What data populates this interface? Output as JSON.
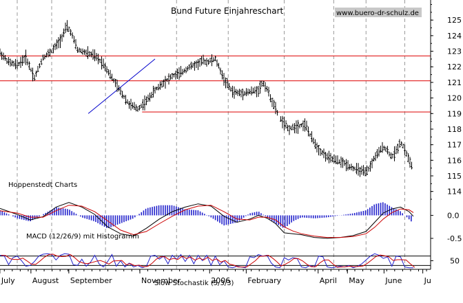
{
  "chart_data": [
    {
      "panel": "price",
      "type": "ohlc",
      "title": "Bund Future Einjahreschart",
      "watermark": "www.buero-dr-schulz.de",
      "source_label": "Hoppenstedt Charts",
      "ylim": [
        113.5,
        126.2
      ],
      "ytick_values": [
        114,
        115,
        116,
        117,
        118,
        119,
        120,
        121,
        122,
        123,
        124,
        125
      ],
      "ytick_labels": [
        "114",
        "115",
        "116",
        "117",
        "118",
        "119",
        "120",
        "121",
        "122",
        "123",
        "124",
        "125"
      ],
      "x_months": [
        "July",
        "August",
        "September",
        "November",
        "2006",
        "February",
        "April",
        "May",
        "June",
        "Ju"
      ],
      "horizontal_lines": [
        122.7,
        121.1,
        119.1
      ],
      "trendline": {
        "from": [
          0.205,
          119.0
        ],
        "to": [
          0.36,
          122.5
        ]
      },
      "price_path": [
        [
          0.0,
          122.9
        ],
        [
          0.02,
          122.3
        ],
        [
          0.04,
          122.1
        ],
        [
          0.06,
          122.6
        ],
        [
          0.08,
          121.3
        ],
        [
          0.1,
          122.6
        ],
        [
          0.12,
          123.0
        ],
        [
          0.14,
          123.7
        ],
        [
          0.155,
          124.6
        ],
        [
          0.165,
          124.2
        ],
        [
          0.18,
          123.1
        ],
        [
          0.2,
          122.9
        ],
        [
          0.22,
          122.7
        ],
        [
          0.24,
          122.2
        ],
        [
          0.26,
          121.3
        ],
        [
          0.28,
          120.4
        ],
        [
          0.3,
          119.6
        ],
        [
          0.32,
          119.3
        ],
        [
          0.34,
          119.8
        ],
        [
          0.36,
          120.5
        ],
        [
          0.38,
          121.0
        ],
        [
          0.4,
          121.4
        ],
        [
          0.42,
          121.6
        ],
        [
          0.44,
          122.0
        ],
        [
          0.46,
          122.2
        ],
        [
          0.47,
          122.4
        ],
        [
          0.48,
          122.3
        ],
        [
          0.5,
          122.5
        ],
        [
          0.51,
          121.9
        ],
        [
          0.52,
          121.2
        ],
        [
          0.54,
          120.4
        ],
        [
          0.56,
          120.3
        ],
        [
          0.58,
          120.4
        ],
        [
          0.6,
          120.5
        ],
        [
          0.61,
          121.0
        ],
        [
          0.62,
          120.6
        ],
        [
          0.63,
          119.9
        ],
        [
          0.64,
          119.3
        ],
        [
          0.65,
          118.7
        ],
        [
          0.67,
          118.0
        ],
        [
          0.69,
          118.2
        ],
        [
          0.71,
          118.3
        ],
        [
          0.72,
          117.6
        ],
        [
          0.74,
          116.7
        ],
        [
          0.76,
          116.2
        ],
        [
          0.78,
          116.0
        ],
        [
          0.8,
          115.8
        ],
        [
          0.82,
          115.5
        ],
        [
          0.84,
          115.3
        ],
        [
          0.85,
          115.2
        ],
        [
          0.86,
          115.6
        ],
        [
          0.87,
          116.2
        ],
        [
          0.88,
          116.5
        ],
        [
          0.89,
          116.9
        ],
        [
          0.9,
          116.6
        ],
        [
          0.91,
          116.2
        ],
        [
          0.92,
          116.6
        ],
        [
          0.93,
          117.2
        ],
        [
          0.94,
          116.7
        ],
        [
          0.95,
          116.0
        ],
        [
          0.96,
          115.4
        ]
      ]
    },
    {
      "panel": "macd",
      "type": "line+bar",
      "label": "MACD (12/26/9) mit Histogramm",
      "ylim": [
        -0.8,
        0.35
      ],
      "ytick_values": [
        0.0,
        -0.5
      ],
      "ytick_labels": [
        "0.0",
        "-0.5"
      ],
      "series": [
        {
          "name": "MACD",
          "color": "#000000"
        },
        {
          "name": "Signal",
          "color": "#cc0000"
        },
        {
          "name": "Histogramm",
          "color": "#2222cc"
        }
      ],
      "macd_path": [
        [
          0.0,
          0.15
        ],
        [
          0.04,
          0.02
        ],
        [
          0.07,
          -0.1
        ],
        [
          0.1,
          -0.03
        ],
        [
          0.13,
          0.18
        ],
        [
          0.16,
          0.28
        ],
        [
          0.19,
          0.18
        ],
        [
          0.22,
          0.02
        ],
        [
          0.25,
          -0.25
        ],
        [
          0.28,
          -0.4
        ],
        [
          0.31,
          -0.45
        ],
        [
          0.34,
          -0.28
        ],
        [
          0.37,
          -0.08
        ],
        [
          0.4,
          0.08
        ],
        [
          0.43,
          0.18
        ],
        [
          0.46,
          0.25
        ],
        [
          0.49,
          0.2
        ],
        [
          0.52,
          -0.02
        ],
        [
          0.55,
          -0.15
        ],
        [
          0.58,
          -0.08
        ],
        [
          0.6,
          0.0
        ],
        [
          0.62,
          -0.06
        ],
        [
          0.64,
          -0.18
        ],
        [
          0.66,
          -0.38
        ],
        [
          0.68,
          -0.4
        ],
        [
          0.7,
          -0.42
        ],
        [
          0.73,
          -0.48
        ],
        [
          0.76,
          -0.5
        ],
        [
          0.79,
          -0.48
        ],
        [
          0.82,
          -0.44
        ],
        [
          0.85,
          -0.35
        ],
        [
          0.87,
          -0.15
        ],
        [
          0.89,
          0.05
        ],
        [
          0.91,
          0.14
        ],
        [
          0.93,
          0.18
        ],
        [
          0.95,
          0.08
        ],
        [
          0.96,
          -0.02
        ]
      ],
      "signal_path": [
        [
          0.0,
          0.1
        ],
        [
          0.04,
          0.05
        ],
        [
          0.07,
          -0.04
        ],
        [
          0.1,
          -0.04
        ],
        [
          0.13,
          0.1
        ],
        [
          0.16,
          0.22
        ],
        [
          0.19,
          0.2
        ],
        [
          0.22,
          0.08
        ],
        [
          0.25,
          -0.12
        ],
        [
          0.28,
          -0.32
        ],
        [
          0.31,
          -0.42
        ],
        [
          0.34,
          -0.35
        ],
        [
          0.37,
          -0.18
        ],
        [
          0.4,
          -0.02
        ],
        [
          0.43,
          0.12
        ],
        [
          0.46,
          0.2
        ],
        [
          0.49,
          0.22
        ],
        [
          0.52,
          0.08
        ],
        [
          0.55,
          -0.08
        ],
        [
          0.58,
          -0.1
        ],
        [
          0.6,
          -0.04
        ],
        [
          0.62,
          -0.04
        ],
        [
          0.64,
          -0.1
        ],
        [
          0.66,
          -0.25
        ],
        [
          0.68,
          -0.34
        ],
        [
          0.7,
          -0.4
        ],
        [
          0.73,
          -0.45
        ],
        [
          0.76,
          -0.48
        ],
        [
          0.79,
          -0.48
        ],
        [
          0.82,
          -0.46
        ],
        [
          0.85,
          -0.4
        ],
        [
          0.87,
          -0.26
        ],
        [
          0.89,
          -0.08
        ],
        [
          0.91,
          0.06
        ],
        [
          0.93,
          0.14
        ],
        [
          0.95,
          0.12
        ],
        [
          0.96,
          0.06
        ]
      ]
    },
    {
      "panel": "stochastic",
      "type": "line",
      "label": "Slow Stochastik (5/3/3)",
      "ylim": [
        -5,
        105
      ],
      "ytick_values": [
        50
      ],
      "ytick_labels": [
        "50"
      ],
      "horizontal_lines": [
        80,
        20
      ],
      "series": [
        {
          "name": "%K",
          "color": "#2222cc"
        },
        {
          "name": "%D",
          "color": "#cc0000"
        }
      ],
      "k_path": [
        [
          0.0,
          85
        ],
        [
          0.01,
          80
        ],
        [
          0.02,
          25
        ],
        [
          0.03,
          70
        ],
        [
          0.04,
          80
        ],
        [
          0.05,
          50
        ],
        [
          0.06,
          15
        ],
        [
          0.07,
          20
        ],
        [
          0.08,
          45
        ],
        [
          0.09,
          80
        ],
        [
          0.1,
          92
        ],
        [
          0.11,
          95
        ],
        [
          0.12,
          90
        ],
        [
          0.13,
          55
        ],
        [
          0.14,
          85
        ],
        [
          0.15,
          95
        ],
        [
          0.16,
          92
        ],
        [
          0.17,
          25
        ],
        [
          0.18,
          20
        ],
        [
          0.19,
          60
        ],
        [
          0.2,
          15
        ],
        [
          0.21,
          40
        ],
        [
          0.22,
          85
        ],
        [
          0.23,
          30
        ],
        [
          0.24,
          10
        ],
        [
          0.25,
          45
        ],
        [
          0.26,
          90
        ],
        [
          0.27,
          15
        ],
        [
          0.28,
          50
        ],
        [
          0.29,
          10
        ],
        [
          0.3,
          35
        ],
        [
          0.31,
          10
        ],
        [
          0.32,
          20
        ],
        [
          0.33,
          5
        ],
        [
          0.34,
          15
        ],
        [
          0.35,
          80
        ],
        [
          0.36,
          85
        ],
        [
          0.37,
          60
        ],
        [
          0.38,
          80
        ],
        [
          0.39,
          30
        ],
        [
          0.4,
          85
        ],
        [
          0.41,
          60
        ],
        [
          0.42,
          90
        ],
        [
          0.43,
          45
        ],
        [
          0.44,
          85
        ],
        [
          0.45,
          30
        ],
        [
          0.46,
          85
        ],
        [
          0.47,
          50
        ],
        [
          0.48,
          85
        ],
        [
          0.49,
          20
        ],
        [
          0.5,
          80
        ],
        [
          0.51,
          25
        ],
        [
          0.52,
          50
        ],
        [
          0.53,
          10
        ],
        [
          0.54,
          5
        ],
        [
          0.55,
          15
        ],
        [
          0.56,
          10
        ],
        [
          0.57,
          5
        ],
        [
          0.58,
          75
        ],
        [
          0.59,
          70
        ],
        [
          0.6,
          90
        ],
        [
          0.61,
          80
        ],
        [
          0.62,
          85
        ],
        [
          0.63,
          35
        ],
        [
          0.64,
          10
        ],
        [
          0.65,
          5
        ],
        [
          0.66,
          70
        ],
        [
          0.67,
          55
        ],
        [
          0.68,
          70
        ],
        [
          0.69,
          65
        ],
        [
          0.7,
          10
        ],
        [
          0.71,
          5
        ],
        [
          0.72,
          20
        ],
        [
          0.73,
          10
        ],
        [
          0.74,
          80
        ],
        [
          0.75,
          75
        ],
        [
          0.76,
          10
        ],
        [
          0.77,
          5
        ],
        [
          0.78,
          10
        ],
        [
          0.79,
          15
        ],
        [
          0.8,
          10
        ],
        [
          0.81,
          20
        ],
        [
          0.82,
          5
        ],
        [
          0.83,
          15
        ],
        [
          0.84,
          30
        ],
        [
          0.85,
          55
        ],
        [
          0.86,
          80
        ],
        [
          0.87,
          95
        ],
        [
          0.88,
          85
        ],
        [
          0.89,
          65
        ],
        [
          0.9,
          75
        ],
        [
          0.91,
          15
        ],
        [
          0.92,
          80
        ],
        [
          0.93,
          75
        ],
        [
          0.94,
          10
        ],
        [
          0.95,
          5
        ],
        [
          0.96,
          5
        ]
      ]
    }
  ]
}
